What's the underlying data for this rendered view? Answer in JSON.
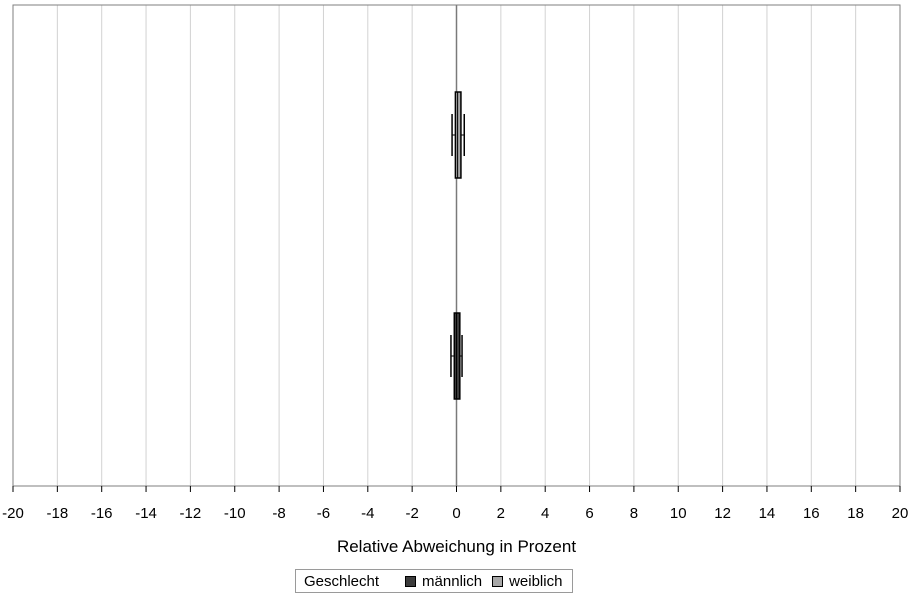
{
  "chart_data": {
    "type": "box",
    "orientation": "horizontal",
    "xlabel": "Relative Abweichung in Prozent",
    "xlim": [
      -20,
      20
    ],
    "xticks": [
      -20,
      -18,
      -16,
      -14,
      -12,
      -10,
      -8,
      -6,
      -4,
      -2,
      0,
      2,
      4,
      6,
      8,
      10,
      12,
      14,
      16,
      18,
      20
    ],
    "grid": true,
    "legend": {
      "title": "Geschlecht",
      "placement": "bottom",
      "entries": [
        {
          "name": "männlich",
          "color": "#3c3c3c"
        },
        {
          "name": "weiblich",
          "color": "#a8a8a8"
        }
      ]
    },
    "series": [
      {
        "name": "weiblich",
        "color": "#a8a8a8",
        "min": -0.2,
        "q1": -0.05,
        "median": 0.05,
        "q3": 0.2,
        "max": 0.35
      },
      {
        "name": "männlich",
        "color": "#3c3c3c",
        "min": -0.25,
        "q1": -0.1,
        "median": 0.0,
        "q3": 0.15,
        "max": 0.25
      }
    ]
  }
}
